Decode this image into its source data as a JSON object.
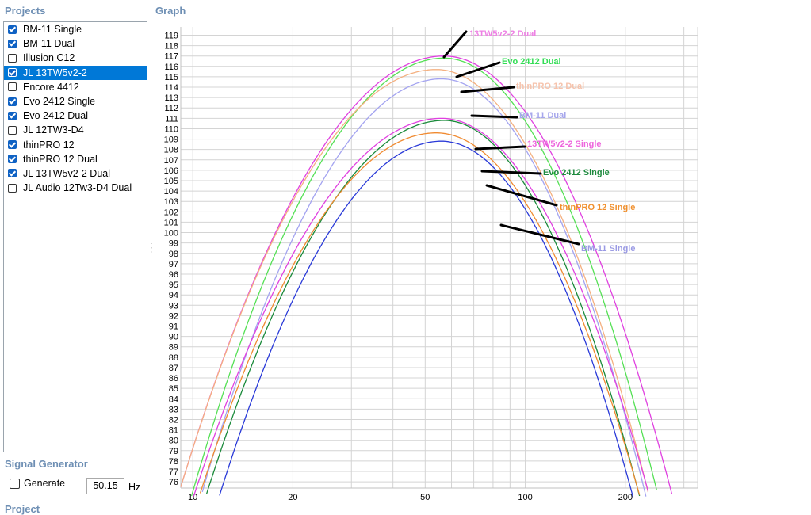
{
  "projects": {
    "title": "Projects",
    "items": [
      {
        "label": "BM-11 Single",
        "checked": true,
        "selected": false
      },
      {
        "label": "BM-11 Dual",
        "checked": true,
        "selected": false
      },
      {
        "label": "Illusion C12",
        "checked": false,
        "selected": false
      },
      {
        "label": "JL 13TW5v2-2",
        "checked": true,
        "selected": true
      },
      {
        "label": "Encore 4412",
        "checked": false,
        "selected": false
      },
      {
        "label": "Evo 2412 Single",
        "checked": true,
        "selected": false
      },
      {
        "label": "Evo 2412 Dual",
        "checked": true,
        "selected": false
      },
      {
        "label": "JL 12TW3-D4",
        "checked": false,
        "selected": false
      },
      {
        "label": "thinPRO 12",
        "checked": true,
        "selected": false
      },
      {
        "label": "thinPRO 12 Dual",
        "checked": true,
        "selected": false
      },
      {
        "label": "JL 13TW5v2-2 Dual",
        "checked": true,
        "selected": false
      },
      {
        "label": "JL Audio 12Tw3-D4 Dual",
        "checked": false,
        "selected": false
      }
    ]
  },
  "graph": {
    "title": "Graph"
  },
  "signal_generator": {
    "title": "Signal Generator",
    "generate_label": "Generate",
    "generate_checked": false,
    "frequency_value": "50.15",
    "unit": "Hz"
  },
  "project_section": {
    "title": "Project"
  },
  "chart_data": {
    "type": "line",
    "x_scale": "log",
    "xlim": [
      9.2,
      330
    ],
    "ylim": [
      75.4,
      119.8
    ],
    "x_tick_labels": [
      {
        "value": 10,
        "label": "10"
      },
      {
        "value": 20,
        "label": "20"
      },
      {
        "value": 50,
        "label": "50"
      },
      {
        "value": 100,
        "label": "100"
      },
      {
        "value": 200,
        "label": "200"
      }
    ],
    "y_ticks": [
      76,
      77,
      78,
      79,
      80,
      81,
      82,
      83,
      84,
      85,
      86,
      87,
      88,
      89,
      90,
      91,
      92,
      93,
      94,
      95,
      96,
      97,
      98,
      99,
      100,
      101,
      102,
      103,
      104,
      105,
      106,
      107,
      108,
      109,
      110,
      111,
      112,
      113,
      114,
      115,
      116,
      117,
      118,
      119
    ],
    "grid": true,
    "series": [
      {
        "name": "13TW5v2-2 Dual",
        "color": "#e040e0",
        "peak_x": 57,
        "peak_y": 117.0,
        "x_low_76": 9.3,
        "x_high_76": 270
      },
      {
        "name": "Evo 2412 Dual",
        "color": "#55e055",
        "peak_x": 57,
        "peak_y": 116.8,
        "x_low_76": 10.2,
        "x_high_76": 245
      },
      {
        "name": "thinPRO 12 Dual",
        "color": "#f4b080",
        "peak_x": 54,
        "peak_y": 115.7,
        "x_low_76": 9.3,
        "x_high_76": 230
      },
      {
        "name": "BM-11 Dual",
        "color": "#a3a3f0",
        "peak_x": 56,
        "peak_y": 114.8,
        "x_low_76": 10.9,
        "x_high_76": 225
      },
      {
        "name": "13TW5v2-2 Single",
        "color": "#e040e0",
        "peak_x": 56,
        "peak_y": 111.0,
        "x_low_76": 10.4,
        "x_high_76": 230
      },
      {
        "name": "Evo 2412 Single",
        "color": "#1a8a3a",
        "peak_x": 57,
        "peak_y": 110.8,
        "x_low_76": 11.3,
        "x_high_76": 215
      },
      {
        "name": "thinPRO 12 Single",
        "color": "#f08a30",
        "peak_x": 54,
        "peak_y": 109.6,
        "x_low_76": 10.8,
        "x_high_76": 215
      },
      {
        "name": "BM-11 Single",
        "color": "#2a3ad8",
        "peak_x": 56,
        "peak_y": 108.8,
        "x_low_76": 12.4,
        "x_high_76": 205
      }
    ],
    "annotations": [
      {
        "text": "13TW5v2-2 Dual",
        "color": "#ee80e4"
      },
      {
        "text": "Evo 2412 Dual",
        "color": "#33dd55"
      },
      {
        "text": "thinPRO 12 Dual",
        "color": "#f6c3ac"
      },
      {
        "text": "BM-11 Dual",
        "color": "#a6a6ec"
      },
      {
        "text": "13TW5v2-2 Single",
        "color": "#ee66dd"
      },
      {
        "text": "Evo 2412 Single",
        "color": "#1e8a3e"
      },
      {
        "text": "thinPRO 12 Single",
        "color": "#f0902e"
      },
      {
        "text": "BM-11 Single",
        "color": "#9a9ae4"
      }
    ]
  }
}
